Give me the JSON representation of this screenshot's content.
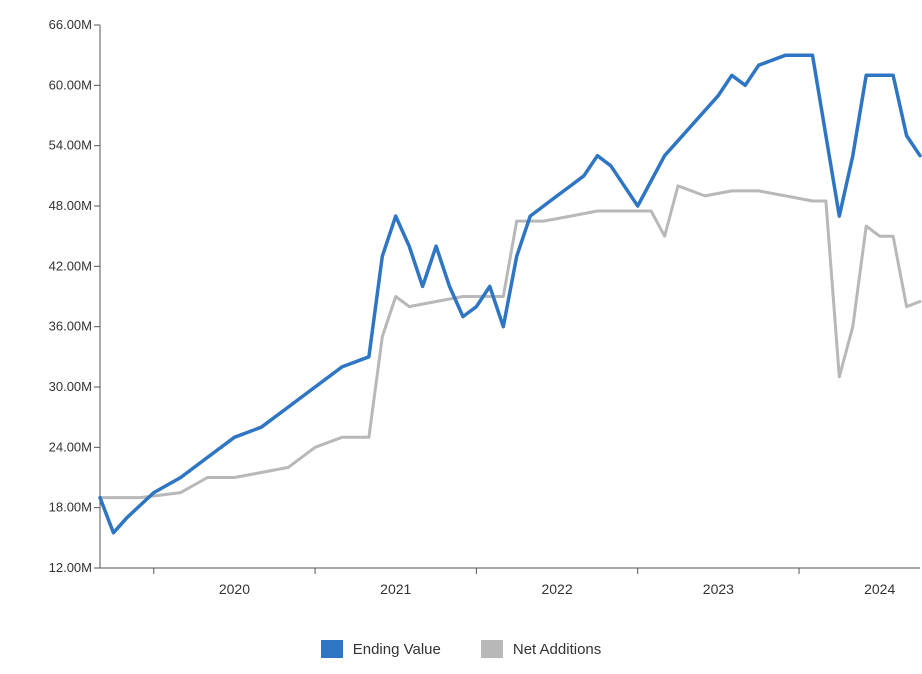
{
  "chart_data": {
    "type": "line",
    "title": "",
    "xlabel": "",
    "ylabel": "",
    "ylim": [
      12,
      66
    ],
    "yunit": "M",
    "y_ticks": [
      "12.00M",
      "18.00M",
      "24.00M",
      "30.00M",
      "36.00M",
      "42.00M",
      "48.00M",
      "54.00M",
      "60.00M",
      "66.00M"
    ],
    "x_tick_labels": [
      "2020",
      "2021",
      "2022",
      "2023",
      "2024"
    ],
    "x_range": [
      "2019-09",
      "2024-10"
    ],
    "grid": false,
    "legend_position": "bottom",
    "series": [
      {
        "name": "Ending Value",
        "color": "#2e75c4",
        "x": [
          "2019-09",
          "2019-10",
          "2019-11",
          "2020-01",
          "2020-03",
          "2020-05",
          "2020-07",
          "2020-09",
          "2020-11",
          "2021-01",
          "2021-03",
          "2021-05",
          "2021-06",
          "2021-07",
          "2021-08",
          "2021-09",
          "2021-10",
          "2021-11",
          "2021-12",
          "2022-01",
          "2022-02",
          "2022-03",
          "2022-04",
          "2022-05",
          "2022-06",
          "2022-07",
          "2022-08",
          "2022-09",
          "2022-10",
          "2022-11",
          "2023-01",
          "2023-03",
          "2023-05",
          "2023-07",
          "2023-08",
          "2023-09",
          "2023-10",
          "2023-12",
          "2024-02",
          "2024-04",
          "2024-05",
          "2024-06",
          "2024-07",
          "2024-08",
          "2024-09",
          "2024-10"
        ],
        "values": [
          19,
          15.5,
          17,
          19.5,
          21,
          23,
          25,
          26,
          28,
          30,
          32,
          33,
          43,
          47,
          44,
          40,
          44,
          40,
          37,
          38,
          40,
          36,
          43,
          47,
          48,
          49,
          50,
          51,
          53,
          52,
          48,
          53,
          56,
          59,
          61,
          60,
          62,
          63,
          63,
          47,
          53,
          61,
          61,
          61,
          55,
          53
        ]
      },
      {
        "name": "Net Additions",
        "color": "#b8b8b8",
        "x": [
          "2019-09",
          "2019-12",
          "2020-03",
          "2020-05",
          "2020-07",
          "2020-09",
          "2020-11",
          "2021-01",
          "2021-03",
          "2021-05",
          "2021-06",
          "2021-07",
          "2021-08",
          "2021-10",
          "2021-12",
          "2022-02",
          "2022-03",
          "2022-04",
          "2022-06",
          "2022-08",
          "2022-10",
          "2022-12",
          "2023-02",
          "2023-03",
          "2023-04",
          "2023-06",
          "2023-08",
          "2023-10",
          "2023-12",
          "2024-02",
          "2024-03",
          "2024-04",
          "2024-05",
          "2024-06",
          "2024-07",
          "2024-08",
          "2024-09",
          "2024-10"
        ],
        "values": [
          19,
          19,
          19.5,
          21,
          21,
          21.5,
          22,
          24,
          25,
          25,
          35,
          39,
          38,
          38.5,
          39,
          39,
          39,
          46.5,
          46.5,
          47,
          47.5,
          47.5,
          47.5,
          45,
          50,
          49,
          49.5,
          49.5,
          49,
          48.5,
          48.5,
          31,
          36,
          46,
          45,
          45,
          38,
          38.5
        ]
      }
    ]
  },
  "legend": {
    "items": [
      {
        "label": "Ending Value",
        "color": "#2e75c4"
      },
      {
        "label": "Net Additions",
        "color": "#b8b8b8"
      }
    ]
  }
}
